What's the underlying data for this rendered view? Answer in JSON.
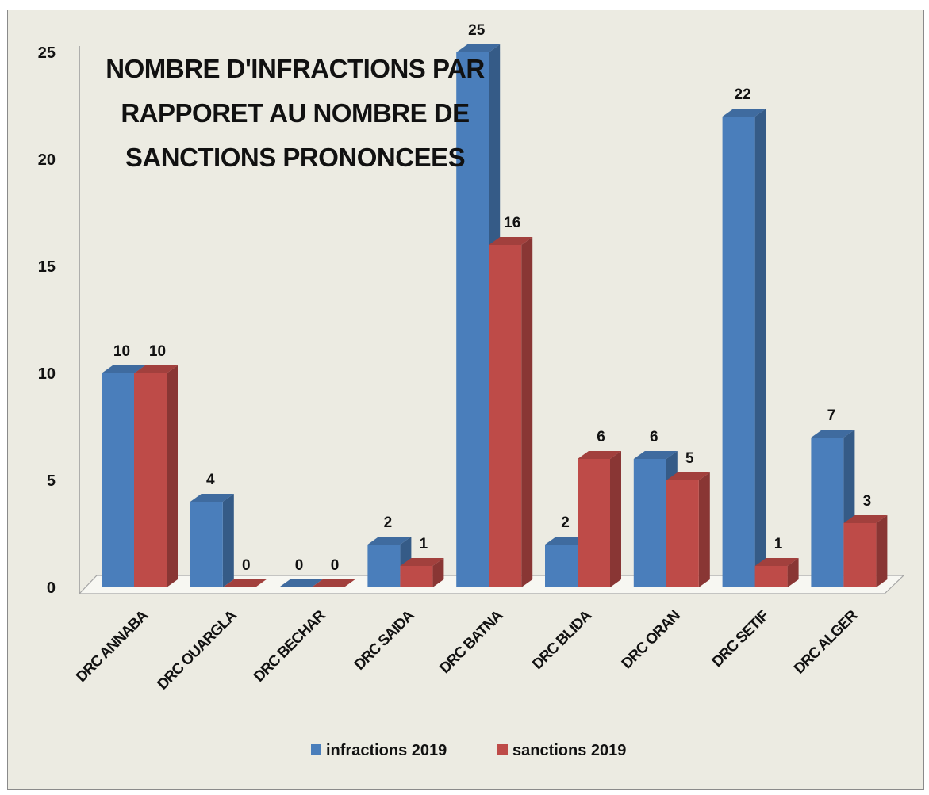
{
  "chart_data": {
    "type": "bar",
    "style": "3d-clustered-column",
    "title_lines": [
      "NOMBRE D'INFRACTIONS PAR",
      "RAPPORET AU   NOMBRE DE",
      "SANCTIONS PRONONCEES"
    ],
    "categories": [
      "DRC ANNABA",
      "DRC OUARGLA",
      "DRC BECHAR",
      "DRC SAIDA",
      "DRC BATNA",
      "DRC BLIDA",
      "DRC ORAN",
      "DRC SETIF",
      "DRC ALGER"
    ],
    "series": [
      {
        "name": "infractions 2019",
        "color": "#4a7ebb",
        "values": [
          10,
          4,
          0,
          2,
          25,
          2,
          6,
          22,
          7
        ]
      },
      {
        "name": "sanctions 2019",
        "color": "#be4b48",
        "values": [
          10,
          0,
          0,
          1,
          16,
          6,
          5,
          1,
          3
        ]
      }
    ],
    "ylim": [
      0,
      25
    ],
    "yticks": [
      0,
      5,
      10,
      15,
      20,
      25
    ],
    "data_labels": true,
    "legend_position": "bottom",
    "background": "#ecebe2"
  }
}
